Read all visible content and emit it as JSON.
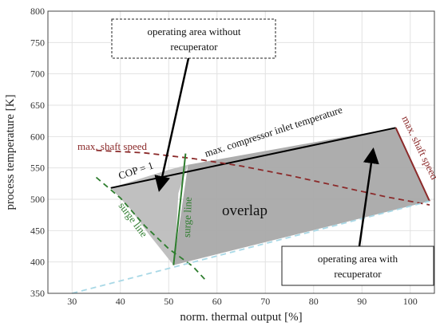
{
  "chart_data": {
    "type": "area",
    "xlabel": "norm. thermal output [%]",
    "ylabel": "process temperature [K]",
    "xlim": [
      25,
      105
    ],
    "ylim": [
      350,
      800
    ],
    "xticks": [
      30,
      40,
      50,
      60,
      70,
      80,
      90,
      100
    ],
    "yticks": [
      350,
      400,
      450,
      500,
      550,
      600,
      650,
      700,
      750,
      800
    ],
    "grid": true,
    "regions": [
      {
        "label": "operating area without recuperator",
        "color": "#bdbdbd",
        "points": [
          [
            38,
            518
          ],
          [
            50,
            547
          ],
          [
            54,
            555
          ],
          [
            52,
            510
          ],
          [
            51.5,
            440
          ],
          [
            51,
            395
          ],
          [
            46,
            443
          ],
          [
            42,
            485
          ]
        ]
      },
      {
        "label": "operating area with recuperator",
        "color": "#a9a9a9",
        "points": [
          [
            51,
            395
          ],
          [
            104,
            497
          ],
          [
            97,
            614
          ],
          [
            54,
            555
          ]
        ]
      }
    ],
    "lines": [
      {
        "label": "max. compressor inlet temperature",
        "color": "#000000",
        "style": "solid",
        "points": [
          [
            38,
            518
          ],
          [
            97,
            614
          ]
        ]
      },
      {
        "label": "max. shaft speed",
        "color": "#8b2a2a",
        "style": "dashed",
        "points": [
          [
            35,
            578
          ],
          [
            45,
            574
          ],
          [
            55,
            565
          ],
          [
            65,
            553
          ],
          [
            75,
            538
          ],
          [
            85,
            521
          ],
          [
            95,
            504
          ],
          [
            104,
            491
          ]
        ]
      },
      {
        "label": "max. shaft speed",
        "color": "#8b2a2a",
        "style": "solid",
        "points": [
          [
            97,
            614
          ],
          [
            104,
            497
          ]
        ]
      },
      {
        "label": "surge line",
        "color": "#2e7d2e",
        "style": "dashed",
        "points": [
          [
            35,
            535
          ],
          [
            40,
            502
          ],
          [
            45,
            458
          ],
          [
            50,
            421
          ],
          [
            55,
            393
          ],
          [
            58,
            368
          ]
        ]
      },
      {
        "label": "surge line",
        "color": "#2e7d2e",
        "style": "solid",
        "points": [
          [
            51,
            395
          ],
          [
            53.5,
            573
          ]
        ]
      },
      {
        "color": "#a8d8e6",
        "style": "dashed",
        "points": [
          [
            30,
            350
          ],
          [
            104,
            497
          ]
        ]
      }
    ],
    "annotations": [
      "COP = 1",
      "max. shaft speed",
      "max. compressor inlet temperature",
      "max. shaft speed",
      "surge line",
      "surge line",
      "overlap",
      "operating area without recuperator",
      "operating area with recuperator"
    ]
  }
}
